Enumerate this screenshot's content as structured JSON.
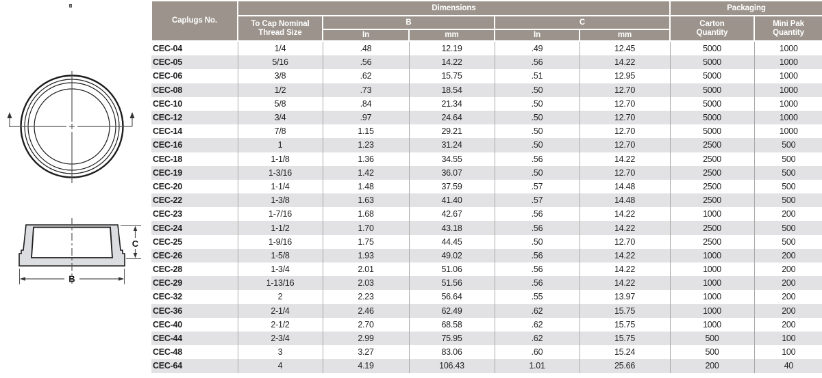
{
  "colors": {
    "header-bg": "#9c948c",
    "header-text": "#ffffff",
    "row-stripe": "#e2e2e4",
    "grid-line": "#a8a8a8",
    "data-text": "#1f1f1f",
    "diagram-line": "#1c1c1c",
    "diagram-dim": "#555555",
    "diagram-fill": "#dcdde0"
  },
  "diagram": {
    "label_b": "B",
    "label_c": "C"
  },
  "table": {
    "header": {
      "caplugs_no": "Caplugs No.",
      "dimensions": "Dimensions",
      "packaging": "Packaging",
      "thread_size": "To Cap Nominal Thread Size",
      "b": "B",
      "c": "C",
      "in": "In",
      "mm": "mm",
      "carton": "Carton Quantity",
      "mini_pak": "Mini Pak Quantity"
    },
    "rows": [
      [
        "CEC-04",
        "1/4",
        ".48",
        "12.19",
        ".49",
        "12.45",
        "5000",
        "1000"
      ],
      [
        "CEC-05",
        "5/16",
        ".56",
        "14.22",
        ".56",
        "14.22",
        "5000",
        "1000"
      ],
      [
        "CEC-06",
        "3/8",
        ".62",
        "15.75",
        ".51",
        "12.95",
        "5000",
        "1000"
      ],
      [
        "CEC-08",
        "1/2",
        ".73",
        "18.54",
        ".50",
        "12.70",
        "5000",
        "1000"
      ],
      [
        "CEC-10",
        "5/8",
        ".84",
        "21.34",
        ".50",
        "12.70",
        "5000",
        "1000"
      ],
      [
        "CEC-12",
        "3/4",
        ".97",
        "24.64",
        ".50",
        "12.70",
        "5000",
        "1000"
      ],
      [
        "CEC-14",
        "7/8",
        "1.15",
        "29.21",
        ".50",
        "12.70",
        "5000",
        "1000"
      ],
      [
        "CEC-16",
        "1",
        "1.23",
        "31.24",
        ".50",
        "12.70",
        "2500",
        "500"
      ],
      [
        "CEC-18",
        "1-1/8",
        "1.36",
        "34.55",
        ".56",
        "14.22",
        "2500",
        "500"
      ],
      [
        "CEC-19",
        "1-3/16",
        "1.42",
        "36.07",
        ".50",
        "12.70",
        "2500",
        "500"
      ],
      [
        "CEC-20",
        "1-1/4",
        "1.48",
        "37.59",
        ".57",
        "14.48",
        "2500",
        "500"
      ],
      [
        "CEC-22",
        "1-3/8",
        "1.63",
        "41.40",
        ".57",
        "14.48",
        "2500",
        "500"
      ],
      [
        "CEC-23",
        "1-7/16",
        "1.68",
        "42.67",
        ".56",
        "14.22",
        "1000",
        "200"
      ],
      [
        "CEC-24",
        "1-1/2",
        "1.70",
        "43.18",
        ".56",
        "14.22",
        "2500",
        "500"
      ],
      [
        "CEC-25",
        "1-9/16",
        "1.75",
        "44.45",
        ".50",
        "12.70",
        "2500",
        "500"
      ],
      [
        "CEC-26",
        "1-5/8",
        "1.93",
        "49.02",
        ".56",
        "14.22",
        "1000",
        "200"
      ],
      [
        "CEC-28",
        "1-3/4",
        "2.01",
        "51.06",
        ".56",
        "14.22",
        "1000",
        "200"
      ],
      [
        "CEC-29",
        "1-13/16",
        "2.03",
        "51.56",
        ".56",
        "14.22",
        "1000",
        "200"
      ],
      [
        "CEC-32",
        "2",
        "2.23",
        "56.64",
        ".55",
        "13.97",
        "1000",
        "200"
      ],
      [
        "CEC-36",
        "2-1/4",
        "2.46",
        "62.49",
        ".62",
        "15.75",
        "1000",
        "200"
      ],
      [
        "CEC-40",
        "2-1/2",
        "2.70",
        "68.58",
        ".62",
        "15.75",
        "1000",
        "200"
      ],
      [
        "CEC-44",
        "2-3/4",
        "2.99",
        "75.95",
        ".62",
        "15.75",
        "500",
        "100"
      ],
      [
        "CEC-48",
        "3",
        "3.27",
        "83.06",
        ".60",
        "15.24",
        "500",
        "100"
      ],
      [
        "CEC-64",
        "4",
        "4.19",
        "106.43",
        "1.01",
        "25.66",
        "200",
        "40"
      ]
    ]
  }
}
